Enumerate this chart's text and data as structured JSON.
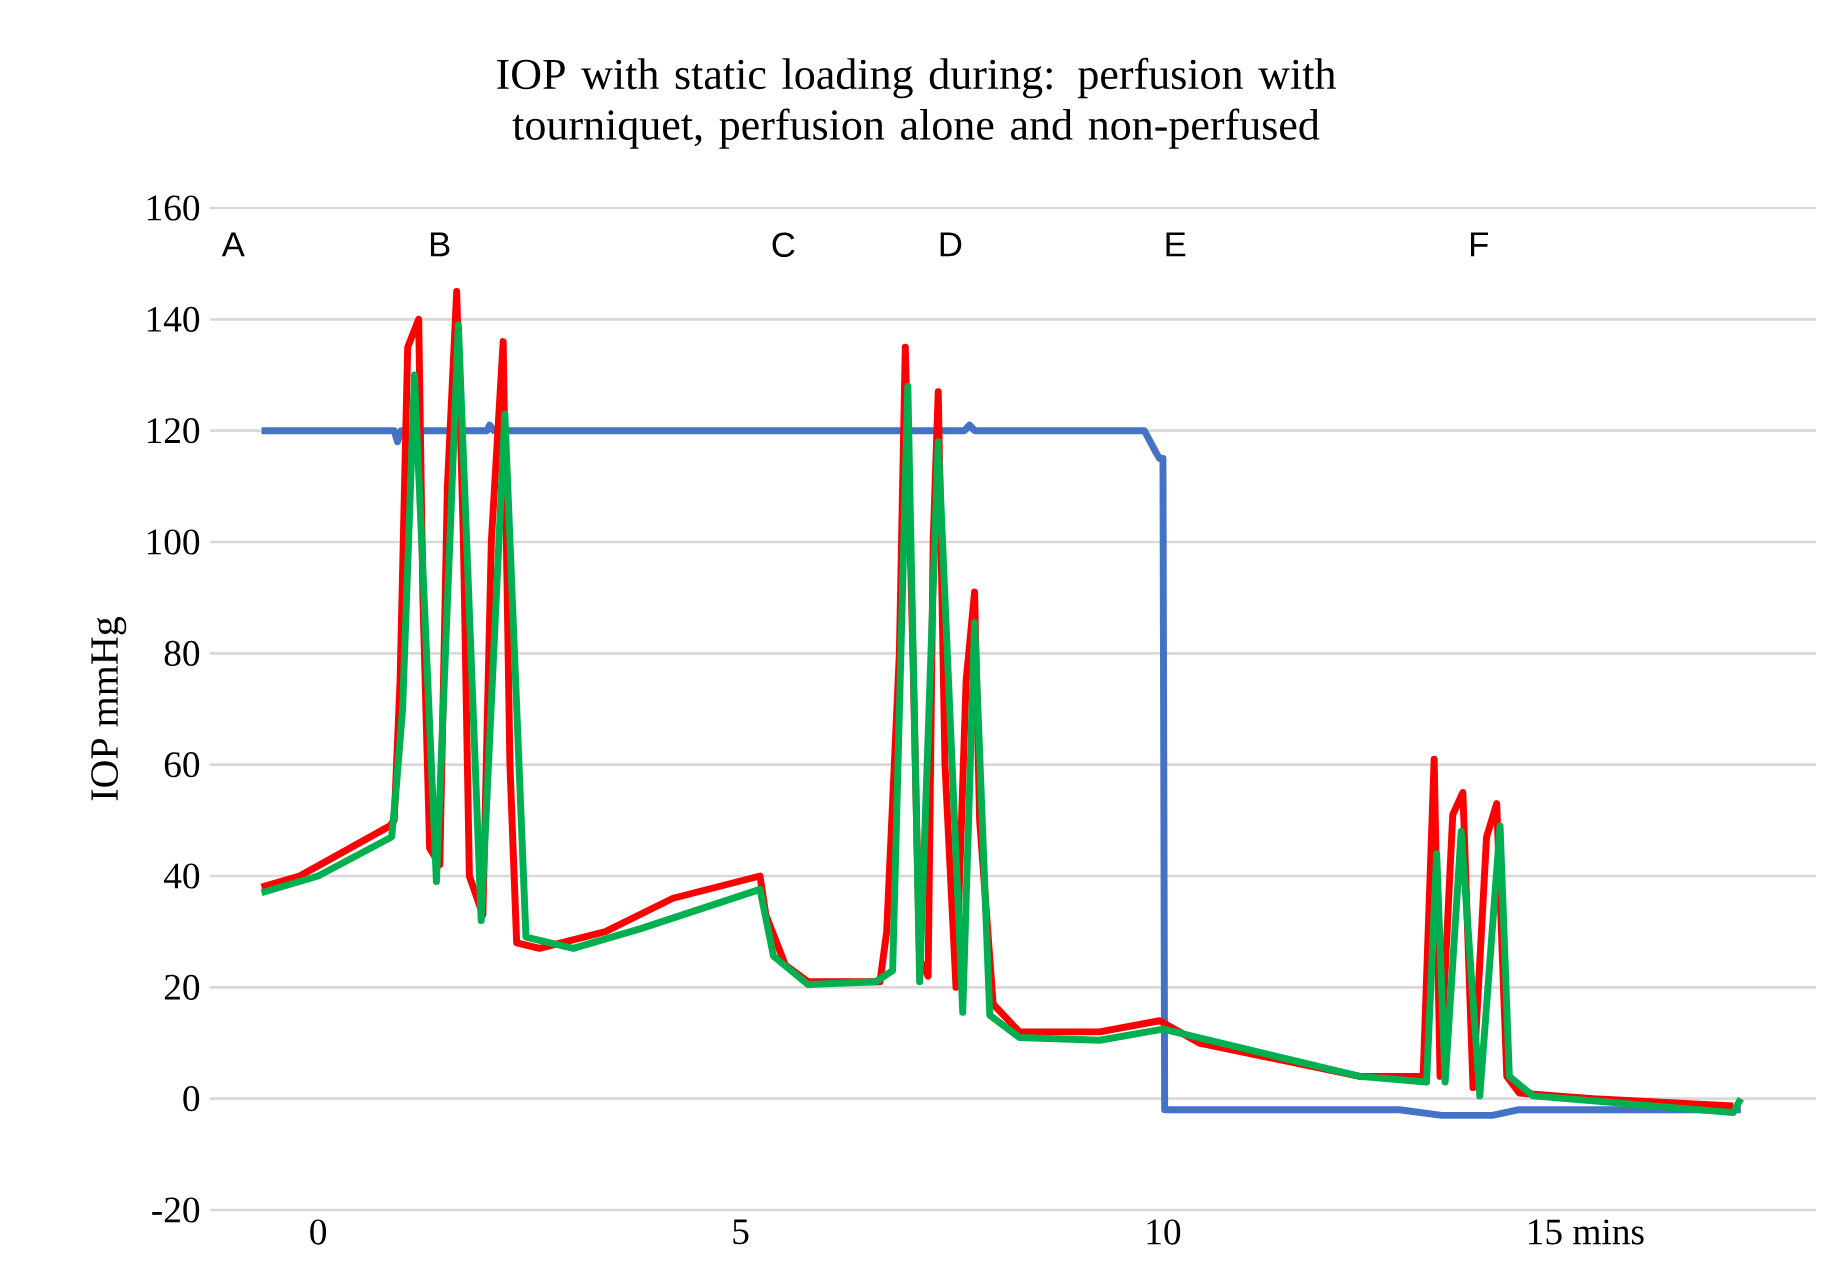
{
  "chart_data": {
    "type": "line",
    "title": "IOP with static loading during: perfusion with tourniquet, perfusion alone and non-perfused",
    "ylabel": "IOP mmHg",
    "xlim": [
      -1.28,
      17.73
    ],
    "ylim": [
      -20,
      160
    ],
    "xticks": [
      0,
      5,
      10,
      {
        "value": 15,
        "label": "15 mins"
      }
    ],
    "yticks": [
      -20,
      0,
      20,
      40,
      60,
      80,
      100,
      120,
      140,
      160
    ],
    "grid": "y",
    "marker": "none",
    "line_style": "solid",
    "annotations": [
      "A",
      "B",
      "C",
      "D",
      "E",
      "F"
    ],
    "series": [
      {
        "color": "#4472c4",
        "x": [
          -0.67,
          0.9,
          0.94,
          0.98,
          2.0,
          2.03,
          2.08,
          7.65,
          7.71,
          7.77,
          9.78,
          9.92,
          9.96,
          10.0,
          10.02,
          12.8,
          13.3,
          13.9,
          14.2,
          16.84
        ],
        "values": [
          120,
          120,
          118,
          120,
          120,
          121,
          120,
          120,
          121,
          120,
          120,
          116,
          115,
          115,
          -2,
          -2,
          -3,
          -3,
          -2,
          -2
        ]
      },
      {
        "color": "#ff0000",
        "x": [
          -0.67,
          -0.22,
          0.02,
          0.85,
          0.9,
          0.97,
          1.06,
          1.19,
          1.24,
          1.32,
          1.44,
          1.53,
          1.64,
          1.72,
          1.79,
          1.95,
          2.05,
          2.19,
          2.27,
          2.35,
          2.62,
          3.4,
          4.2,
          5.23,
          5.3,
          5.53,
          5.8,
          6.65,
          6.73,
          6.88,
          6.95,
          7.04,
          7.12,
          7.22,
          7.28,
          7.34,
          7.42,
          7.55,
          7.67,
          7.77,
          7.83,
          7.99,
          8.3,
          9.25,
          9.96,
          10.43,
          12.33,
          13.08,
          13.21,
          13.28,
          13.43,
          13.55,
          13.67,
          13.83,
          13.95,
          14.07,
          14.22,
          15.09,
          16.75
        ],
        "values": [
          38,
          40,
          42,
          49,
          50,
          75,
          135,
          140,
          90,
          45,
          42,
          110,
          145,
          100,
          40,
          33,
          100,
          136,
          60,
          28,
          27,
          30,
          36,
          40,
          33,
          24,
          21,
          21,
          30,
          80,
          135,
          80,
          25,
          22,
          100,
          127,
          60,
          20,
          75,
          91,
          50,
          17,
          12,
          12,
          14,
          10,
          4,
          4,
          61,
          4,
          51,
          55,
          2,
          47,
          53,
          4,
          1,
          0,
          -1.3
        ]
      },
      {
        "color": "#00b050",
        "x": [
          -0.67,
          0.0,
          0.87,
          0.92,
          1.0,
          1.14,
          1.4,
          1.66,
          1.93,
          2.21,
          2.46,
          3.02,
          3.81,
          5.23,
          5.39,
          5.8,
          6.6,
          6.8,
          6.98,
          7.12,
          7.34,
          7.63,
          7.77,
          7.95,
          8.3,
          9.25,
          10.0,
          12.33,
          13.12,
          13.24,
          13.34,
          13.53,
          13.75,
          13.99,
          14.1,
          14.38,
          16.75,
          16.84
        ],
        "values": [
          37,
          40,
          47,
          55,
          70,
          130,
          39,
          139,
          32,
          123,
          29,
          27,
          30.5,
          37.6,
          25.6,
          20.5,
          21,
          23,
          128,
          21,
          118,
          15.5,
          85.5,
          15,
          11,
          10.5,
          12.5,
          4,
          3,
          44,
          3,
          48,
          0.5,
          49,
          4,
          0.5,
          -2.5,
          0
        ]
      }
    ]
  }
}
